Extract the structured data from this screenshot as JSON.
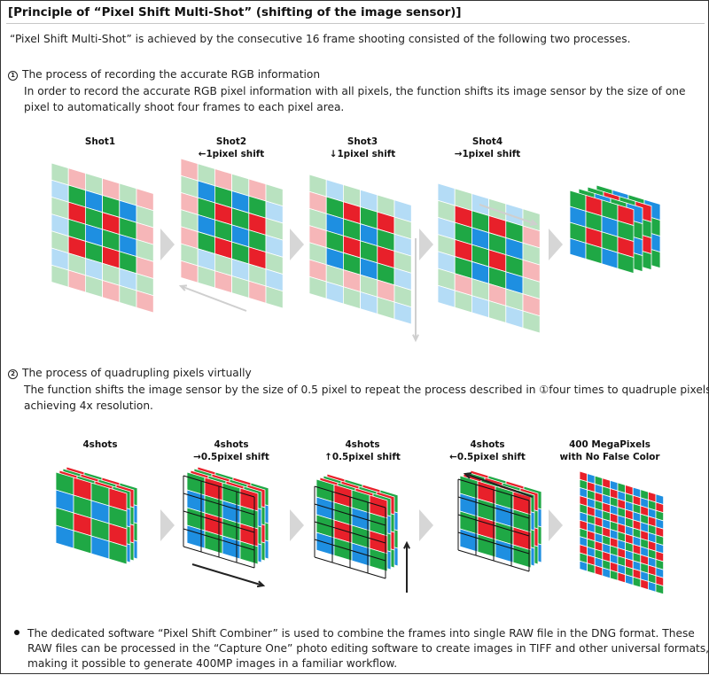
{
  "title": "[Principle of “Pixel Shift Multi-Shot” (shifting of the image sensor)]",
  "intro": "“Pixel Shift Multi-Shot” is achieved by the consecutive 16 frame shooting consisted of the following two processes.",
  "section1": {
    "number": "1",
    "heading": "The process of recording the accurate RGB information",
    "line1": "In order to record the accurate RGB pixel information with all pixels, the function shifts its image sensor by the size of one",
    "line2": "pixel to automatically shoot four frames to each pixel area.",
    "shots": [
      {
        "title": "Shot1",
        "sub": ""
      },
      {
        "title": "Shot2",
        "sub": "←1pixel shift"
      },
      {
        "title": "Shot3",
        "sub": "↓1pixel shift"
      },
      {
        "title": "Shot4",
        "sub": "→1pixel shift"
      }
    ]
  },
  "section2": {
    "number": "2",
    "heading": "The process of quadrupling pixels virtually",
    "line1": "The function shifts the image sensor by the size of 0.5 pixel to repeat the process described in ①four times to quadruple pixels,",
    "line2": "achieving 4x resolution.",
    "shots": [
      {
        "title": "4shots",
        "sub": ""
      },
      {
        "title": "4shots",
        "sub": "→0.5pixel shift"
      },
      {
        "title": "4shots",
        "sub": "↑0.5pixel shift"
      },
      {
        "title": "4shots",
        "sub": "←0.5pixel shift"
      },
      {
        "title": "400 MegaPixels",
        "sub": "with No False Color"
      }
    ]
  },
  "note": {
    "line1": "The dedicated software “Pixel Shift Combiner” is used to combine the frames into single RAW file in the DNG format. These",
    "line2": "RAW files can be processed in the “Capture One” photo editing software to create images in TIFF and other universal formats,",
    "line3": "making it possible to generate 400MP images in a familiar workflow."
  },
  "colors": {
    "red": "#e8202a",
    "green": "#1fa845",
    "blue": "#1e8fe1",
    "light_red": "#f6b6b8",
    "light_green": "#b9e2c0",
    "light_blue": "#b4dcf6",
    "arrow_gray": "#d6d6d6"
  }
}
